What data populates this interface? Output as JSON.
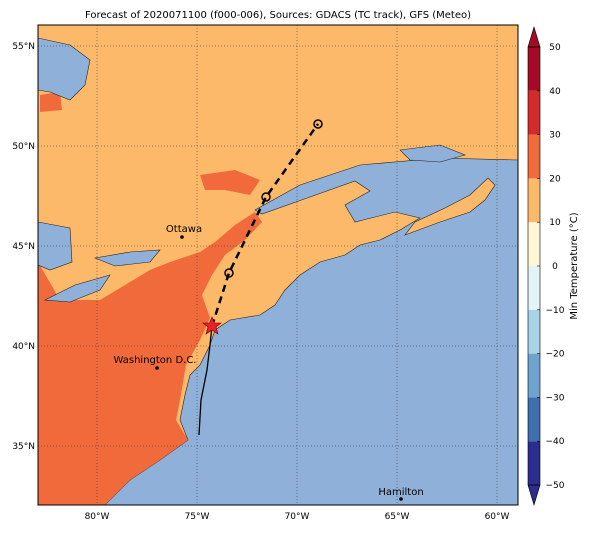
{
  "map": {
    "title": "Forecast of 2020071100 (f000-006), Sources: GDACS (TC track), GFS (Meteo)",
    "lon_ticks": [
      {
        "value": -80,
        "label": "80°W"
      },
      {
        "value": -75,
        "label": "75°W"
      },
      {
        "value": -70,
        "label": "70°W"
      },
      {
        "value": -65,
        "label": "65°W"
      },
      {
        "value": -60,
        "label": "60°W"
      }
    ],
    "lat_ticks": [
      {
        "value": 35,
        "label": "35°N"
      },
      {
        "value": 40,
        "label": "40°N"
      },
      {
        "value": 45,
        "label": "45°N"
      },
      {
        "value": 50,
        "label": "50°N"
      },
      {
        "value": 55,
        "label": "55°N"
      }
    ],
    "cities": [
      "Ottawa",
      "Washington D.C.",
      "Hamilton"
    ],
    "colorbar": {
      "label": "Min Temperature (°C)",
      "ticks": [
        {
          "value": -50,
          "label": "−50"
        },
        {
          "value": -40,
          "label": "−40"
        },
        {
          "value": -30,
          "label": "−30"
        },
        {
          "value": -20,
          "label": "−20"
        },
        {
          "value": -10,
          "label": "−10"
        },
        0,
        10,
        20,
        30,
        40,
        50
      ],
      "colors": [
        "#2c2d8f",
        "#3f6fb0",
        "#6fa3cf",
        "#a9d3e6",
        "#e3f4f8",
        "#fff6d6",
        "#fdb96a",
        "#f06a3c",
        "#d32b2b",
        "#a50a26"
      ]
    }
  }
}
